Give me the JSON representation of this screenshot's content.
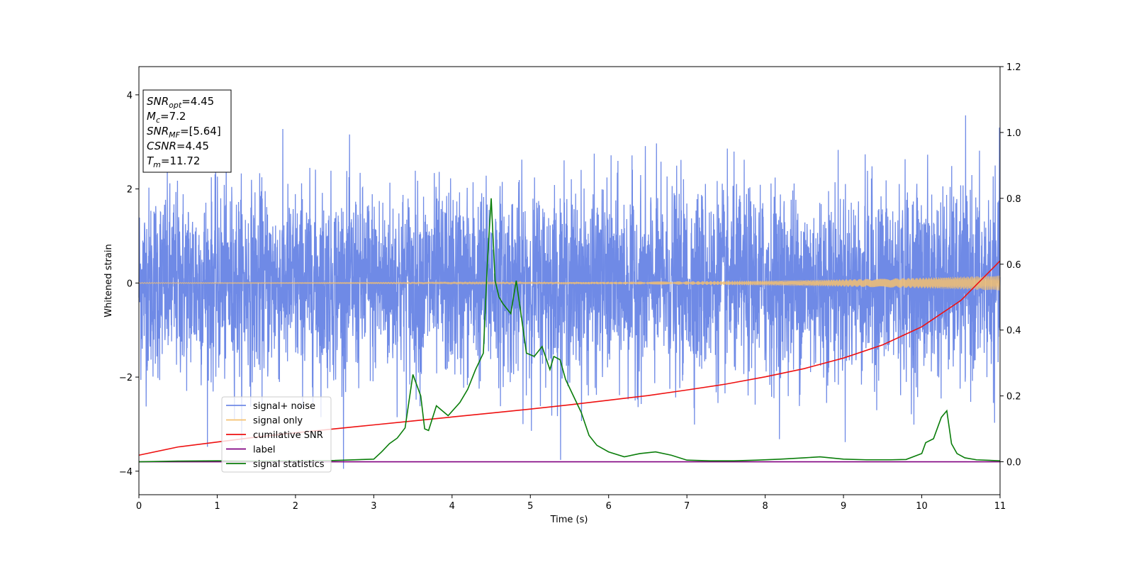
{
  "chart_data": {
    "type": "line",
    "xlabel": "Time (s)",
    "ylabel": "Whitened strain",
    "xlim": [
      0,
      11
    ],
    "ylim": [
      -4.5,
      4.6
    ],
    "y2lim": [
      -0.1,
      1.2
    ],
    "xticks": [
      0,
      1,
      2,
      3,
      4,
      5,
      6,
      7,
      8,
      9,
      10,
      11
    ],
    "yticks": [
      -4,
      -2,
      0,
      2,
      4
    ],
    "y2ticks": [
      0.0,
      0.2,
      0.4,
      0.6,
      0.8,
      1.0,
      1.2
    ],
    "y2tick_labels": [
      "0.0",
      "0.2",
      "0.4",
      "0.6",
      "0.8",
      "1.0",
      "1.2"
    ],
    "grid": false,
    "legend_position": "lower-left",
    "annotation": {
      "lines": [
        {
          "sym": "SNR",
          "sub": "opt",
          "val": "=4.45"
        },
        {
          "sym": "M",
          "sub": "c",
          "val": "=7.2"
        },
        {
          "sym": "SNR",
          "sub": "MF",
          "val": "=[5.64]"
        },
        {
          "sym": "CSNR",
          "sub": "",
          "val": "=4.45"
        },
        {
          "sym": "T",
          "sub": "m",
          "val": "=11.72"
        }
      ]
    },
    "series": [
      {
        "name": "signal+ noise",
        "axis": "left",
        "color": "#6f8ae6",
        "kind": "noise",
        "std": 1.0,
        "peak_range": [
          -3.95,
          4.15
        ]
      },
      {
        "name": "signal only",
        "axis": "left",
        "color": "#f5c070",
        "kind": "chirp",
        "amplitude_start": 0.01,
        "amplitude_end": 0.16
      },
      {
        "name": "cumilative SNR",
        "axis": "right",
        "color": "#ee1111",
        "x": [
          0,
          0.5,
          1,
          1.5,
          2,
          2.5,
          3,
          3.5,
          4,
          4.5,
          5,
          5.5,
          6,
          6.5,
          7,
          7.5,
          8,
          8.5,
          9,
          9.5,
          10,
          10.5,
          11
        ],
        "values": [
          0.02,
          0.045,
          0.06,
          0.075,
          0.088,
          0.1,
          0.112,
          0.124,
          0.136,
          0.148,
          0.16,
          0.173,
          0.187,
          0.201,
          0.218,
          0.236,
          0.258,
          0.283,
          0.315,
          0.355,
          0.41,
          0.49,
          0.61
        ]
      },
      {
        "name": "label",
        "axis": "right",
        "color": "#800080",
        "x": [
          0,
          11
        ],
        "values": [
          0.0,
          0.0
        ]
      },
      {
        "name": "signal statistics",
        "axis": "right",
        "color": "#0a7d0a",
        "x": [
          0,
          0.5,
          1,
          1.5,
          2,
          2.5,
          3,
          3.1,
          3.2,
          3.3,
          3.4,
          3.5,
          3.6,
          3.65,
          3.7,
          3.8,
          3.9,
          3.95,
          4.1,
          4.2,
          4.3,
          4.4,
          4.45,
          4.5,
          4.55,
          4.6,
          4.65,
          4.75,
          4.82,
          4.88,
          4.95,
          5.05,
          5.15,
          5.25,
          5.3,
          5.38,
          5.45,
          5.55,
          5.65,
          5.75,
          5.85,
          6,
          6.2,
          6.4,
          6.6,
          6.8,
          7,
          7.3,
          7.6,
          7.9,
          8.2,
          8.5,
          8.7,
          9,
          9.3,
          9.6,
          9.8,
          10,
          10.05,
          10.15,
          10.25,
          10.32,
          10.38,
          10.45,
          10.55,
          10.7,
          11
        ],
        "values": [
          0.0,
          0.002,
          0.003,
          0.002,
          0.003,
          0.004,
          0.008,
          0.03,
          0.055,
          0.072,
          0.103,
          0.265,
          0.2,
          0.1,
          0.095,
          0.17,
          0.15,
          0.14,
          0.18,
          0.22,
          0.28,
          0.33,
          0.6,
          0.8,
          0.55,
          0.5,
          0.48,
          0.45,
          0.55,
          0.45,
          0.33,
          0.32,
          0.35,
          0.28,
          0.32,
          0.31,
          0.25,
          0.2,
          0.15,
          0.08,
          0.05,
          0.03,
          0.015,
          0.025,
          0.03,
          0.02,
          0.005,
          0.003,
          0.003,
          0.005,
          0.008,
          0.012,
          0.015,
          0.008,
          0.006,
          0.006,
          0.007,
          0.025,
          0.058,
          0.07,
          0.135,
          0.155,
          0.055,
          0.025,
          0.012,
          0.006,
          0.003
        ]
      }
    ]
  }
}
